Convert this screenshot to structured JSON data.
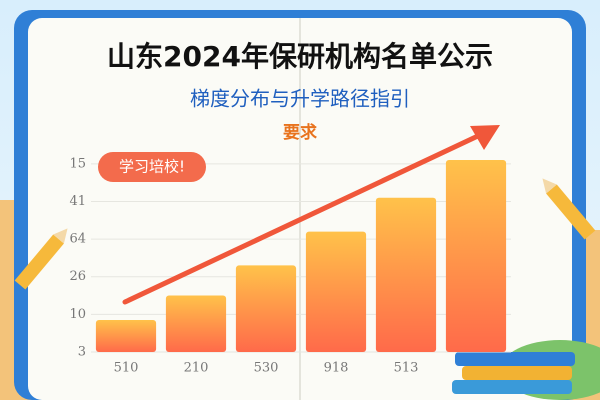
{
  "header": {
    "title": "山东2024年保研机构名单公示",
    "subtitle": "梯度分布与升学路径指引",
    "tag": "要求"
  },
  "badge": "学习培校!",
  "chart_data": {
    "type": "bar",
    "categories": [
      "510",
      "210",
      "530",
      "918",
      "513",
      null
    ],
    "values": [
      0.85,
      1.5,
      2.3,
      3.2,
      4.1,
      5.1
    ],
    "ylim": [
      0,
      5.5
    ],
    "yticks": [
      {
        "value": 0,
        "label": "3"
      },
      {
        "value": 1,
        "label": "10"
      },
      {
        "value": 2,
        "label": "26"
      },
      {
        "value": 3,
        "label": "64"
      },
      {
        "value": 4,
        "label": "41"
      },
      {
        "value": 5,
        "label": "15"
      }
    ],
    "color": "#ff8a3d",
    "grid": true
  }
}
